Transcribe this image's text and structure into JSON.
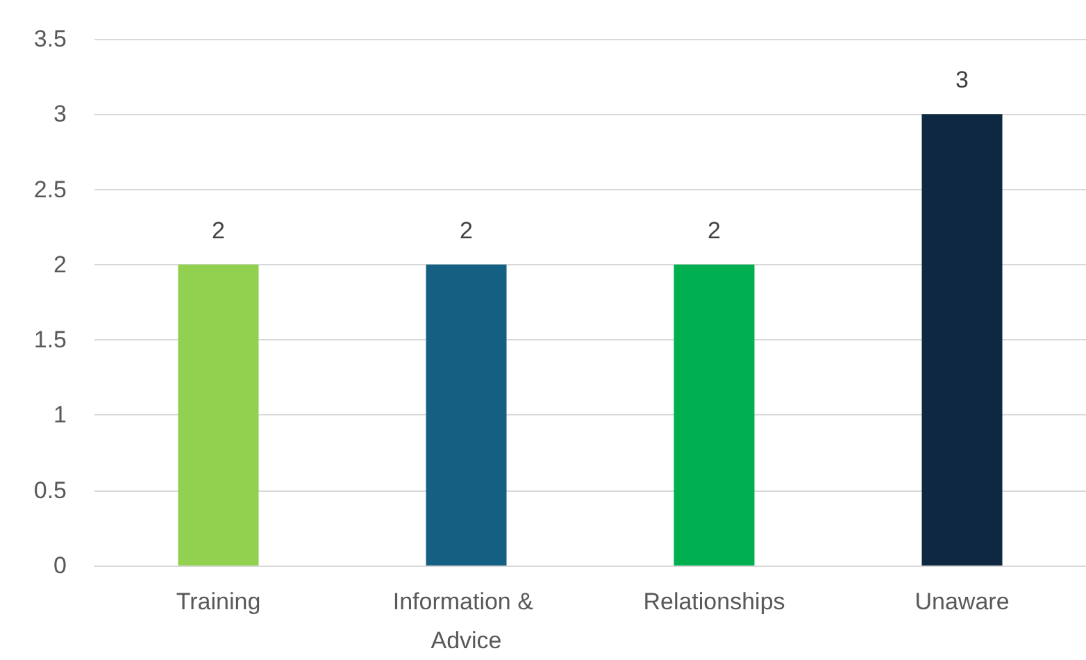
{
  "chart_data": {
    "type": "bar",
    "categories": [
      "Training",
      "Information & Advice",
      "Relationships",
      "Unaware"
    ],
    "values": [
      2,
      2,
      2,
      3
    ],
    "colors": [
      "#92d050",
      "#156082",
      "#00b050",
      "#0e2841"
    ],
    "ylim": [
      0,
      3.5
    ],
    "yticks": [
      0,
      0.5,
      1,
      1.5,
      2,
      2.5,
      3,
      3.5
    ],
    "grid": "y",
    "data_labels": true
  }
}
